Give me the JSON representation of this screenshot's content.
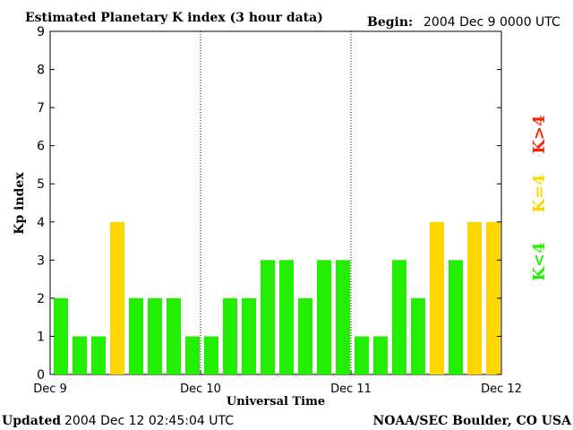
{
  "header": {
    "title": "Estimated Planetary K index (3 hour data)",
    "begin_label": "Begin:",
    "begin_value": "2004 Dec 9 0000 UTC"
  },
  "footer": {
    "updated_label": "Updated",
    "updated_value": "2004 Dec 12 02:45:04 UTC",
    "credit": "NOAA/SEC Boulder, CO USA"
  },
  "legend": [
    {
      "label": "K<4",
      "color": "#22ee00"
    },
    {
      "label": "K=4",
      "color": "#ffd700"
    },
    {
      "label": "K>4",
      "color": "#ff2200"
    }
  ],
  "chart_data": {
    "type": "bar",
    "title": "Estimated Planetary K index (3 hour data)",
    "xlabel": "Universal Time",
    "ylabel": "Kp index",
    "ylim": [
      0,
      9
    ],
    "yticks": [
      0,
      1,
      2,
      3,
      4,
      5,
      6,
      7,
      8,
      9
    ],
    "x_tick_labels": [
      "Dec 9",
      "Dec 10",
      "Dec 11",
      "Dec 12"
    ],
    "day_separators": true,
    "interval_hours": 3,
    "values": [
      2,
      1,
      1,
      4,
      2,
      2,
      2,
      1,
      1,
      2,
      2,
      3,
      3,
      2,
      3,
      3,
      1,
      1,
      3,
      2,
      4,
      3,
      4,
      4
    ],
    "colors": {
      "below": "#22ee00",
      "equal": "#ffd700",
      "above": "#ff2200"
    }
  }
}
